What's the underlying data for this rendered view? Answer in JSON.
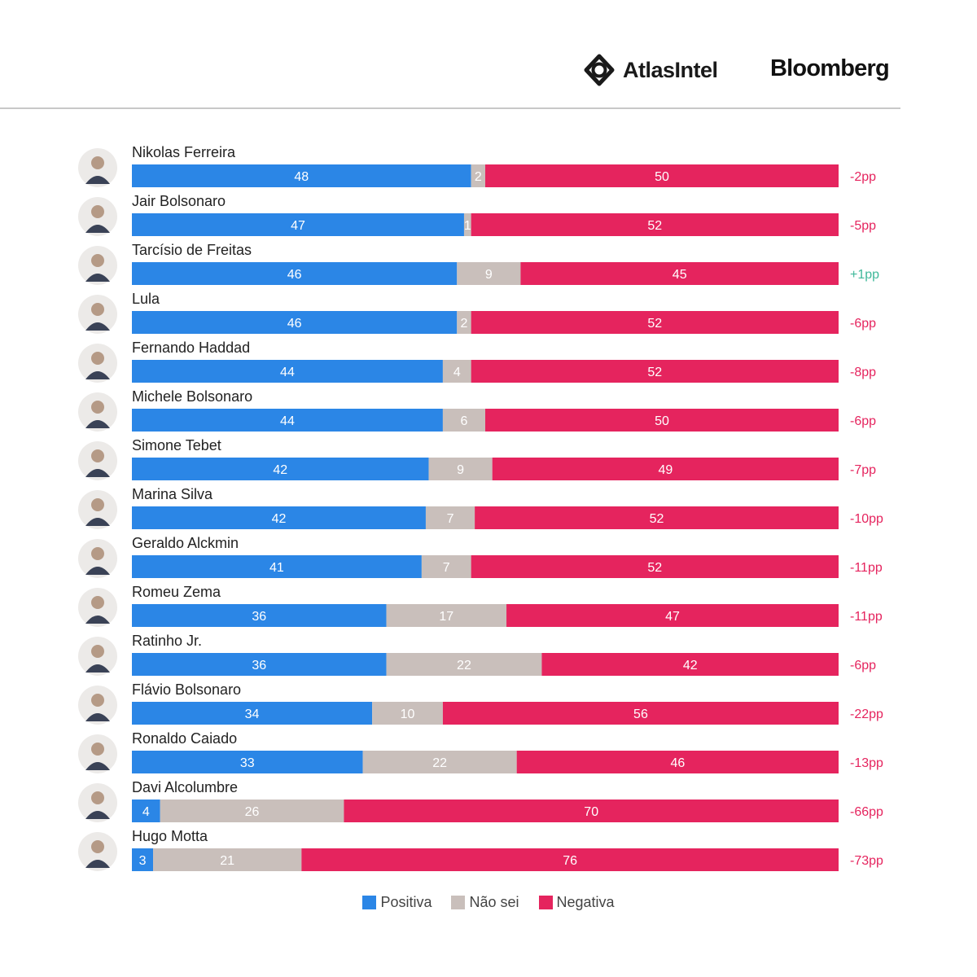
{
  "header": {
    "atlas_logo_text": "AtlasIntel",
    "bloomberg_logo_text": "Bloomberg"
  },
  "colors": {
    "positive": "#2b86e6",
    "neutral": "#c9bfbb",
    "negative": "#e5245e",
    "diff_negative": "#e5245e",
    "diff_positive": "#3fb89a"
  },
  "chart_data": {
    "type": "bar",
    "orientation": "horizontal-stacked-100",
    "series_names": [
      "Positiva",
      "Não sei",
      "Negativa"
    ],
    "rows": [
      {
        "name": "Nikolas Ferreira",
        "positiva": 48,
        "nao_sei": 2,
        "negativa": 50,
        "diff": "-2pp"
      },
      {
        "name": "Jair Bolsonaro",
        "positiva": 47,
        "nao_sei": 1,
        "negativa": 52,
        "diff": "-5pp"
      },
      {
        "name": "Tarcísio de Freitas",
        "positiva": 46,
        "nao_sei": 9,
        "negativa": 45,
        "diff": "+1pp"
      },
      {
        "name": "Lula",
        "positiva": 46,
        "nao_sei": 2,
        "negativa": 52,
        "diff": "-6pp"
      },
      {
        "name": "Fernando Haddad",
        "positiva": 44,
        "nao_sei": 4,
        "negativa": 52,
        "diff": "-8pp"
      },
      {
        "name": "Michele Bolsonaro",
        "positiva": 44,
        "nao_sei": 6,
        "negativa": 50,
        "diff": "-6pp"
      },
      {
        "name": "Simone Tebet",
        "positiva": 42,
        "nao_sei": 9,
        "negativa": 49,
        "diff": "-7pp"
      },
      {
        "name": "Marina Silva",
        "positiva": 42,
        "nao_sei": 7,
        "negativa": 52,
        "diff": "-10pp"
      },
      {
        "name": "Geraldo Alckmin",
        "positiva": 41,
        "nao_sei": 7,
        "negativa": 52,
        "diff": "-11pp"
      },
      {
        "name": "Romeu Zema",
        "positiva": 36,
        "nao_sei": 17,
        "negativa": 47,
        "diff": "-11pp"
      },
      {
        "name": "Ratinho Jr.",
        "positiva": 36,
        "nao_sei": 22,
        "negativa": 42,
        "diff": "-6pp"
      },
      {
        "name": "Flávio Bolsonaro",
        "positiva": 34,
        "nao_sei": 10,
        "negativa": 56,
        "diff": "-22pp"
      },
      {
        "name": "Ronaldo Caiado",
        "positiva": 33,
        "nao_sei": 22,
        "negativa": 46,
        "diff": "-13pp"
      },
      {
        "name": "Davi Alcolumbre",
        "positiva": 4,
        "nao_sei": 26,
        "negativa": 70,
        "diff": "-66pp"
      },
      {
        "name": "Hugo Motta",
        "positiva": 3,
        "nao_sei": 21,
        "negativa": 76,
        "diff": "-73pp"
      }
    ]
  },
  "legend": {
    "positiva": "Positiva",
    "nao_sei": "Não sei",
    "negativa": "Negativa"
  }
}
